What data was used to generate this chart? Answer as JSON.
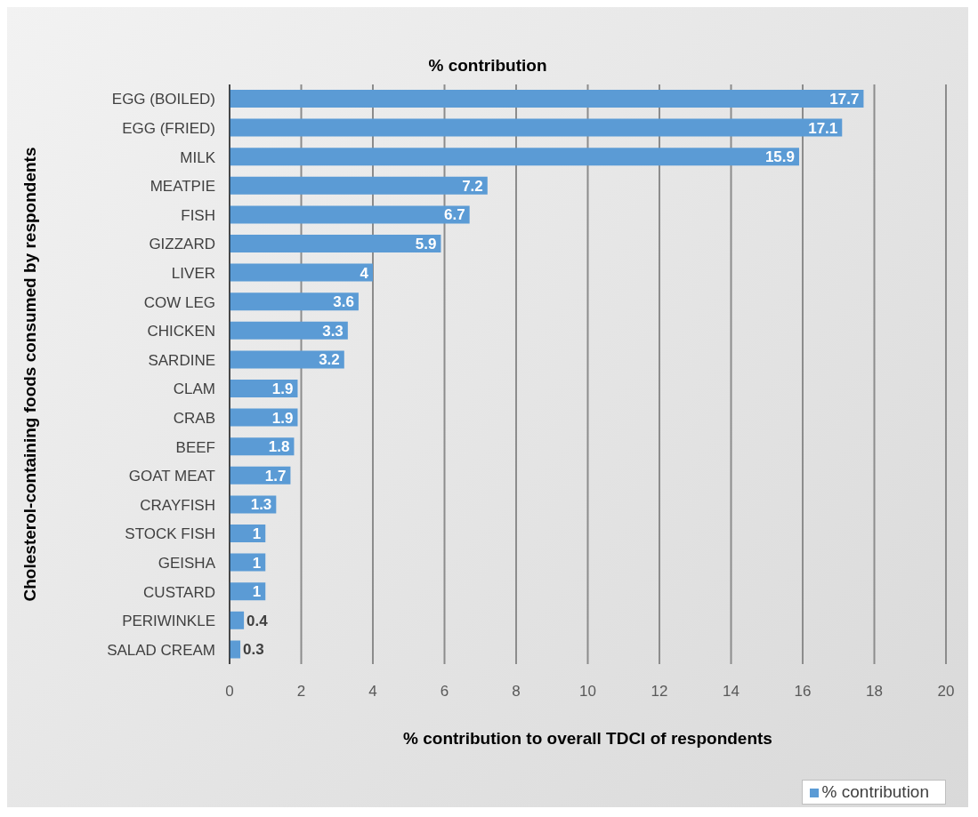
{
  "chart_data": {
    "type": "bar",
    "orientation": "horizontal",
    "title": "% contribution",
    "xlabel": "% contribution to overall TDCI of respondents",
    "ylabel": "Cholesterol-containing foods consumed by respondents",
    "categories": [
      "EGG (BOILED)",
      "EGG (FRIED)",
      "MILK",
      "MEATPIE",
      "FISH",
      "GIZZARD",
      "LIVER",
      "COW LEG",
      "CHICKEN",
      "SARDINE",
      "CLAM",
      "CRAB",
      "BEEF",
      "GOAT MEAT",
      "CRAYFISH",
      "STOCK FISH",
      "GEISHA",
      "CUSTARD",
      "PERIWINKLE",
      "SALAD CREAM"
    ],
    "series": [
      {
        "name": "% contribution",
        "color": "#5b9bd5",
        "values": [
          17.7,
          17.1,
          15.9,
          7.2,
          6.7,
          5.9,
          4,
          3.6,
          3.3,
          3.2,
          1.9,
          1.9,
          1.8,
          1.7,
          1.3,
          1,
          1,
          1,
          0.4,
          0.3
        ]
      }
    ],
    "xlim": [
      0,
      20
    ],
    "xticks": [
      0,
      2,
      4,
      6,
      8,
      10,
      12,
      14,
      16,
      18,
      20
    ],
    "grid": "x",
    "legend": "bottom right",
    "data_labels": true
  }
}
